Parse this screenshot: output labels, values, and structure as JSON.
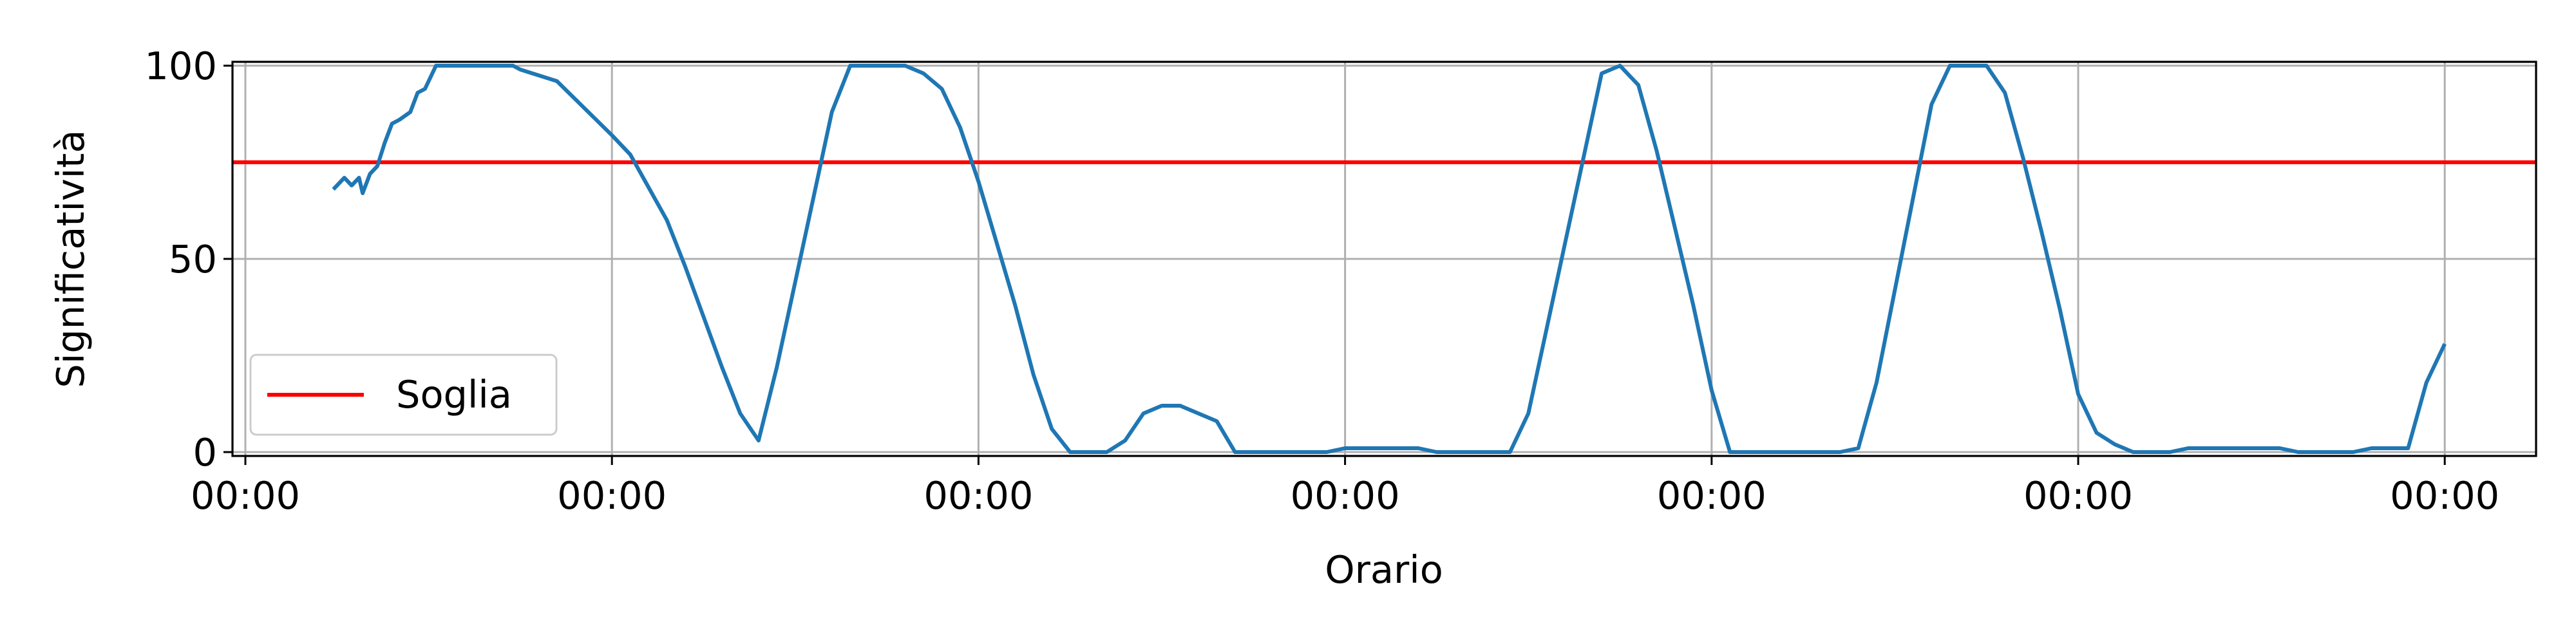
{
  "chart_data": {
    "type": "line",
    "title": "",
    "xlabel": "Orario",
    "ylabel": "Significatività",
    "x_tick_labels": [
      "00:00",
      "00:00",
      "00:00",
      "00:00",
      "00:00",
      "00:00",
      "00:00"
    ],
    "y_ticks": [
      0,
      50,
      100
    ],
    "xlim": [
      -0.04,
      6.28
    ],
    "ylim": [
      -1,
      101
    ],
    "grid": true,
    "legend": {
      "placement": "lower-left",
      "entries": [
        "Soglia"
      ]
    },
    "threshold": {
      "name": "Soglia",
      "value": 75,
      "color": "#ff0000"
    },
    "series": [
      {
        "color": "#1f77b4",
        "x": [
          0.24,
          0.27,
          0.29,
          0.31,
          0.32,
          0.34,
          0.36,
          0.38,
          0.4,
          0.42,
          0.45,
          0.47,
          0.49,
          0.52,
          0.55,
          0.58,
          0.61,
          0.64,
          0.67,
          0.7,
          0.73,
          0.75,
          0.85,
          1.0,
          1.05,
          1.15,
          1.2,
          1.25,
          1.3,
          1.35,
          1.4,
          1.45,
          1.5,
          1.55,
          1.6,
          1.65,
          1.7,
          1.75,
          1.8,
          1.85,
          1.9,
          1.95,
          2.0,
          2.05,
          2.1,
          2.15,
          2.2,
          2.25,
          2.3,
          2.35,
          2.4,
          2.45,
          2.5,
          2.55,
          2.6,
          2.65,
          2.7,
          2.75,
          2.8,
          2.85,
          2.9,
          2.95,
          3.0,
          3.05,
          3.1,
          3.15,
          3.2,
          3.25,
          3.3,
          3.35,
          3.4,
          3.45,
          3.5,
          3.55,
          3.6,
          3.65,
          3.7,
          3.75,
          3.8,
          3.85,
          3.9,
          3.95,
          4.0,
          4.05,
          4.1,
          4.15,
          4.2,
          4.25,
          4.3,
          4.35,
          4.4,
          4.45,
          4.5,
          4.55,
          4.6,
          4.65,
          4.7,
          4.75,
          4.8,
          4.85,
          4.9,
          4.95,
          5.0,
          5.05,
          5.1,
          5.15,
          5.2,
          5.25,
          5.3,
          5.35,
          5.4,
          5.45,
          5.5,
          5.55,
          5.6,
          5.65,
          5.7,
          5.75,
          5.8,
          5.85,
          5.9,
          5.95,
          6.0
        ],
        "y": [
          68,
          71,
          69,
          71,
          67,
          72,
          74,
          80,
          85,
          86,
          88,
          93,
          94,
          100,
          100,
          100,
          100,
          100,
          100,
          100,
          100,
          99,
          96,
          82,
          77,
          60,
          48,
          35,
          22,
          10,
          3,
          22,
          44,
          66,
          88,
          100,
          100,
          100,
          100,
          98,
          94,
          84,
          70,
          54,
          38,
          20,
          6,
          0,
          0,
          0,
          3,
          10,
          12,
          12,
          10,
          8,
          0,
          0,
          0,
          0,
          0,
          0,
          1,
          1,
          1,
          1,
          1,
          0,
          0,
          0,
          0,
          0,
          10,
          32,
          54,
          76,
          98,
          100,
          95,
          78,
          58,
          38,
          16,
          0,
          0,
          0,
          0,
          0,
          0,
          0,
          1,
          18,
          42,
          66,
          90,
          100,
          100,
          100,
          93,
          76,
          57,
          37,
          15,
          5,
          2,
          0,
          0,
          0,
          1,
          1,
          1,
          1,
          1,
          1,
          0,
          0,
          0,
          0,
          1,
          1,
          1,
          18,
          28
        ]
      }
    ]
  }
}
